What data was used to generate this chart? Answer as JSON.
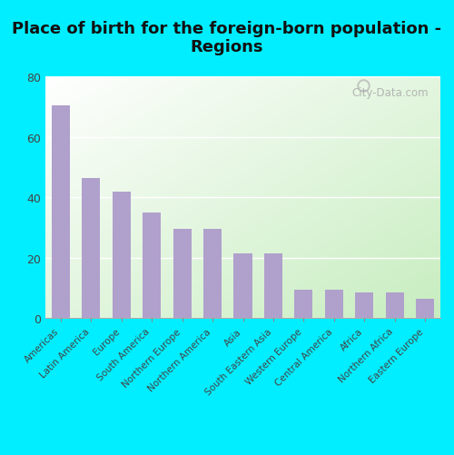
{
  "title": "Place of birth for the foreign-born population -\nRegions",
  "categories": [
    "Americas",
    "Latin America",
    "Europe",
    "South America",
    "Northern Europe",
    "Northern America",
    "Asia",
    "South Eastern Asia",
    "Western Europe",
    "Central America",
    "Africa",
    "Northern Africa",
    "Eastern Europe"
  ],
  "values": [
    70.5,
    46.5,
    42.0,
    35.0,
    29.5,
    29.5,
    21.5,
    21.5,
    9.5,
    9.5,
    8.5,
    8.5,
    6.5
  ],
  "bar_color": "#b0a0cc",
  "background_outer": "#00eeff",
  "ylim": [
    0,
    80
  ],
  "yticks": [
    0,
    20,
    40,
    60,
    80
  ],
  "title_fontsize": 13,
  "tick_label_fontsize": 7.5,
  "watermark": "City-Data.com"
}
